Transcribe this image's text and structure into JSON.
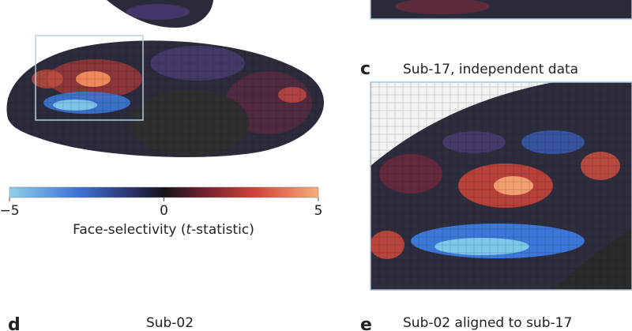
{
  "panels": {
    "c": {
      "letter": "c",
      "title": "Sub-17, independent data"
    },
    "d": {
      "letter": "d",
      "title": "Sub-02"
    },
    "e": {
      "letter": "e",
      "title": "Sub-02 aligned to sub-17"
    }
  },
  "colorbar": {
    "lim": [
      -5,
      5
    ],
    "ticks": [
      {
        "value": -5,
        "label": "−5"
      },
      0,
      5
    ],
    "label": {
      "before": "Face-selectivity (",
      "italic": "t",
      "after": "-statistic)"
    }
  }
}
